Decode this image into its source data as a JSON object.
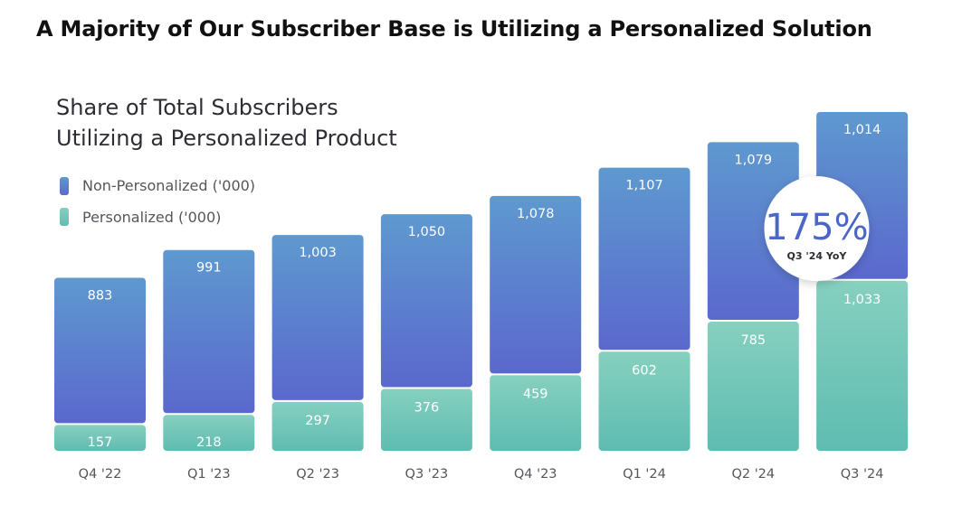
{
  "heading": "A Majority of Our Subscriber Base is Utilizing a Personalized Solution",
  "colors": {
    "non_personalized_top": "#5e99cf",
    "non_personalized_bottom": "#5b68cd",
    "personalized_top": "#86d0bf",
    "personalized_bottom": "#5fbcb1",
    "callout_text": "#4a66c6"
  },
  "chart_data": {
    "type": "bar",
    "stacked": true,
    "title": "Share of Total Subscribers Utilizing a Personalized Product",
    "title_lines": [
      "Share of Total Subscribers",
      "Utilizing a Personalized Product"
    ],
    "categories": [
      "Q4 '22",
      "Q1 '23",
      "Q2 '23",
      "Q3 '23",
      "Q4 '23",
      "Q1 '24",
      "Q2 '24",
      "Q3 '24"
    ],
    "series": [
      {
        "name": "Personalized ('000)",
        "values": [
          157,
          218,
          297,
          376,
          459,
          602,
          785,
          1033
        ]
      },
      {
        "name": "Non-Personalized ('000)",
        "values": [
          883,
          991,
          1003,
          1050,
          1078,
          1107,
          1079,
          1014
        ]
      }
    ],
    "value_labels": {
      "personalized": [
        "157",
        "218",
        "297",
        "376",
        "459",
        "602",
        "785",
        "1,033"
      ],
      "non_personalized": [
        "883",
        "991",
        "1,003",
        "1,050",
        "1,078",
        "1,107",
        "1,079",
        "1,014"
      ]
    },
    "legend": [
      "Non-Personalized ('000)",
      "Personalized ('000)"
    ],
    "legend_position": "top-left",
    "ylim": [
      0,
      2047
    ],
    "grid": false,
    "xlabel": "",
    "ylabel": "",
    "annotation": {
      "value": "175%",
      "label": "Q3 '24 YoY"
    }
  }
}
